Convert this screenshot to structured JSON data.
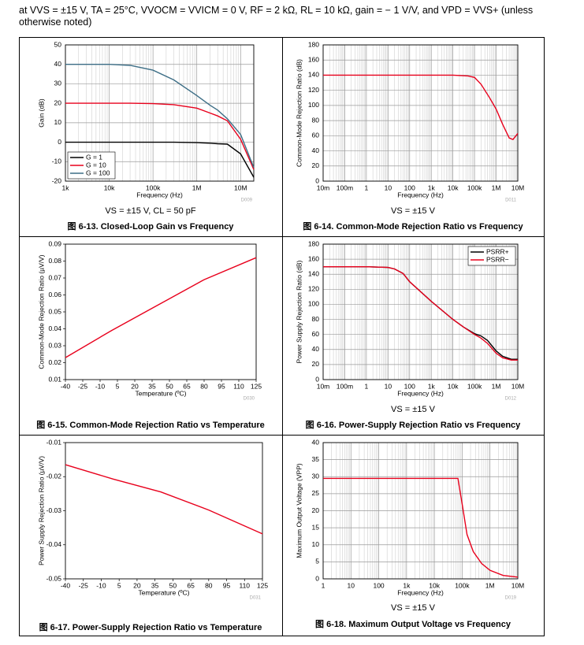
{
  "header": "at VVS = ±15 V, TA = 25°C, VVOCM = VVICM = 0 V, RF = 2 kΩ, RL = 10 kΩ, gain = − 1 V/V, and VPD = VVS+ (unless otherwise noted)",
  "chart_data": [
    {
      "type": "line",
      "title": "图 6-13. Closed-Loop Gain vs Frequency",
      "subtitle": "VS = ±15 V, CL = 50 pF",
      "code": "D009",
      "xlabel": "Frequency (Hz)",
      "ylabel": "Gain (dB)",
      "xscale": "log",
      "grid": true,
      "minor_grid": true,
      "legend": "lower left",
      "xlim": [
        1000,
        20000000
      ],
      "xticks": [
        {
          "value": 1000,
          "label": "1k"
        },
        {
          "value": 10000,
          "label": "10k"
        },
        {
          "value": 100000,
          "label": "100k"
        },
        {
          "value": 1000000,
          "label": "1M"
        },
        {
          "value": 10000000,
          "label": "10M"
        }
      ],
      "ylim": [
        -20,
        50
      ],
      "yticks": [
        -20,
        -10,
        0,
        10,
        20,
        30,
        40,
        50
      ],
      "x": [
        1000,
        10000,
        30000,
        100000,
        300000,
        1000000,
        2000000,
        3000000,
        5000000,
        10000000,
        20000000
      ],
      "series": [
        {
          "name": "G = 1",
          "color": "#000000",
          "values": [
            0,
            0,
            0,
            0,
            0,
            -0.2,
            -0.5,
            -0.8,
            -1,
            -6,
            -18
          ]
        },
        {
          "name": "G = 10",
          "color": "#e8001c",
          "values": [
            20,
            20,
            20,
            19.8,
            19.3,
            17.5,
            15,
            13.5,
            11,
            1.5,
            -14
          ]
        },
        {
          "name": "G = 100",
          "color": "#3d6e86",
          "values": [
            40,
            40,
            39.5,
            37,
            32,
            24,
            19,
            16.5,
            12,
            4,
            -13
          ]
        }
      ]
    },
    {
      "type": "line",
      "title": "图 6-14. Common-Mode Rejection Ratio vs Frequency",
      "subtitle": "VS = ±15 V",
      "code": "D011",
      "xlabel": "Frequency (Hz)",
      "ylabel": "Common-Mode Rejection Ratio (dB)",
      "xscale": "log",
      "grid": true,
      "minor_grid": true,
      "xlim": [
        0.01,
        10000000
      ],
      "xticks": [
        {
          "value": 0.01,
          "label": "10m"
        },
        {
          "value": 0.1,
          "label": "100m"
        },
        1,
        10,
        100,
        {
          "value": 1000,
          "label": "1k"
        },
        {
          "value": 10000,
          "label": "10k"
        },
        {
          "value": 100000,
          "label": "100k"
        },
        {
          "value": 1000000,
          "label": "1M"
        },
        {
          "value": 10000000,
          "label": "10M"
        }
      ],
      "ylim": [
        0,
        180
      ],
      "yticks": [
        0,
        20,
        40,
        60,
        80,
        100,
        120,
        140,
        160,
        180
      ],
      "x": [
        0.01,
        10000,
        50000,
        100000,
        200000,
        500000,
        1000000,
        2000000,
        4000000,
        6000000,
        10000000
      ],
      "series": [
        {
          "color": "#e8001c",
          "values": [
            140,
            140,
            139,
            137,
            128,
            110,
            95,
            75,
            57,
            55,
            63
          ]
        }
      ]
    },
    {
      "type": "line",
      "title": "图 6-15. Common-Mode Rejection Ratio vs Temperature",
      "code": "D030",
      "xlabel": "Temperature (ºC)",
      "ylabel": "Common-Mode Rejection Ratio (µV/V)",
      "xscale": "linear",
      "grid": false,
      "xlim": [
        -40,
        125
      ],
      "xticks": [
        -40,
        -25,
        -10,
        5,
        20,
        35,
        50,
        65,
        80,
        95,
        110,
        125
      ],
      "ylim": [
        0.01,
        0.09
      ],
      "yticks": [
        0.01,
        0.02,
        0.03,
        0.04,
        0.05,
        0.06,
        0.07,
        0.08,
        0.09
      ],
      "x": [
        -40,
        0,
        40,
        80,
        125
      ],
      "series": [
        {
          "color": "#e8001c",
          "values": [
            0.023,
            0.039,
            0.054,
            0.069,
            0.082
          ]
        }
      ]
    },
    {
      "type": "line",
      "title": "图 6-16. Power-Supply Rejection Ratio vs Frequency",
      "subtitle": "VS = ±15 V",
      "code": "D012",
      "xlabel": "Frequency (Hz)",
      "ylabel": "Power Supply Rejection Ratio (dB)",
      "xscale": "log",
      "grid": true,
      "minor_grid": true,
      "legend": "upper right",
      "xlim": [
        0.01,
        10000000
      ],
      "xticks": [
        {
          "value": 0.01,
          "label": "10m"
        },
        {
          "value": 0.1,
          "label": "100m"
        },
        1,
        10,
        100,
        {
          "value": 1000,
          "label": "1k"
        },
        {
          "value": 10000,
          "label": "10k"
        },
        {
          "value": 100000,
          "label": "100k"
        },
        {
          "value": 1000000,
          "label": "1M"
        },
        {
          "value": 10000000,
          "label": "10M"
        }
      ],
      "ylim": [
        0,
        180
      ],
      "yticks": [
        0,
        20,
        40,
        60,
        80,
        100,
        120,
        140,
        160,
        180
      ],
      "x": [
        0.01,
        1,
        10,
        20,
        50,
        100,
        1000,
        10000,
        30000,
        100000,
        200000,
        400000,
        1000000,
        2000000,
        5000000,
        10000000
      ],
      "series": [
        {
          "name": "PSRR+",
          "color": "#000000",
          "values": [
            150,
            150,
            149,
            147,
            141,
            130,
            104,
            80,
            70,
            61,
            58,
            52,
            38,
            31,
            27,
            27
          ]
        },
        {
          "name": "PSRR−",
          "color": "#e8001c",
          "values": [
            150,
            150,
            149,
            147,
            141,
            130,
            104,
            80,
            70,
            60,
            55,
            48,
            35,
            29,
            26,
            26
          ]
        }
      ]
    },
    {
      "type": "line",
      "title": "图 6-17. Power-Supply Rejection Ratio vs Temperature",
      "code": "D031",
      "xlabel": "Temperature (ºC)",
      "ylabel": "Power Supply Rejection Ratio (µV/V)",
      "xscale": "linear",
      "grid": false,
      "xlim": [
        -40,
        125
      ],
      "xticks": [
        -40,
        -25,
        -10,
        5,
        20,
        35,
        50,
        65,
        80,
        95,
        110,
        125
      ],
      "ylim": [
        -0.05,
        -0.01
      ],
      "yticks": [
        -0.05,
        -0.04,
        -0.03,
        -0.02,
        -0.01
      ],
      "x": [
        -40,
        0,
        40,
        80,
        125
      ],
      "series": [
        {
          "color": "#e8001c",
          "values": [
            -0.0165,
            -0.0207,
            -0.0245,
            -0.0298,
            -0.0368
          ]
        }
      ]
    },
    {
      "type": "line",
      "title": "图 6-18. Maximum Output Voltage vs Frequency",
      "subtitle": "VS = ±15 V",
      "code": "D019",
      "xlabel": "Frequency (Hz)",
      "ylabel": "Maximum Output Voltage (VPP)",
      "xscale": "log",
      "grid": true,
      "minor_grid": true,
      "xlim": [
        1,
        10000000
      ],
      "xticks": [
        1,
        10,
        100,
        {
          "value": 1000,
          "label": "1k"
        },
        {
          "value": 10000,
          "label": "10k"
        },
        {
          "value": 100000,
          "label": "100k"
        },
        {
          "value": 1000000,
          "label": "1M"
        },
        {
          "value": 10000000,
          "label": "10M"
        }
      ],
      "ylim": [
        0,
        40
      ],
      "yticks": [
        0,
        5,
        10,
        15,
        20,
        25,
        30,
        35,
        40
      ],
      "x": [
        1,
        70000,
        100000,
        150000,
        250000,
        500000,
        1000000,
        3000000,
        10000000
      ],
      "series": [
        {
          "color": "#e8001c",
          "values": [
            29.5,
            29.5,
            22,
            13,
            8,
            4.5,
            2.5,
            1,
            0.5
          ]
        }
      ]
    }
  ]
}
